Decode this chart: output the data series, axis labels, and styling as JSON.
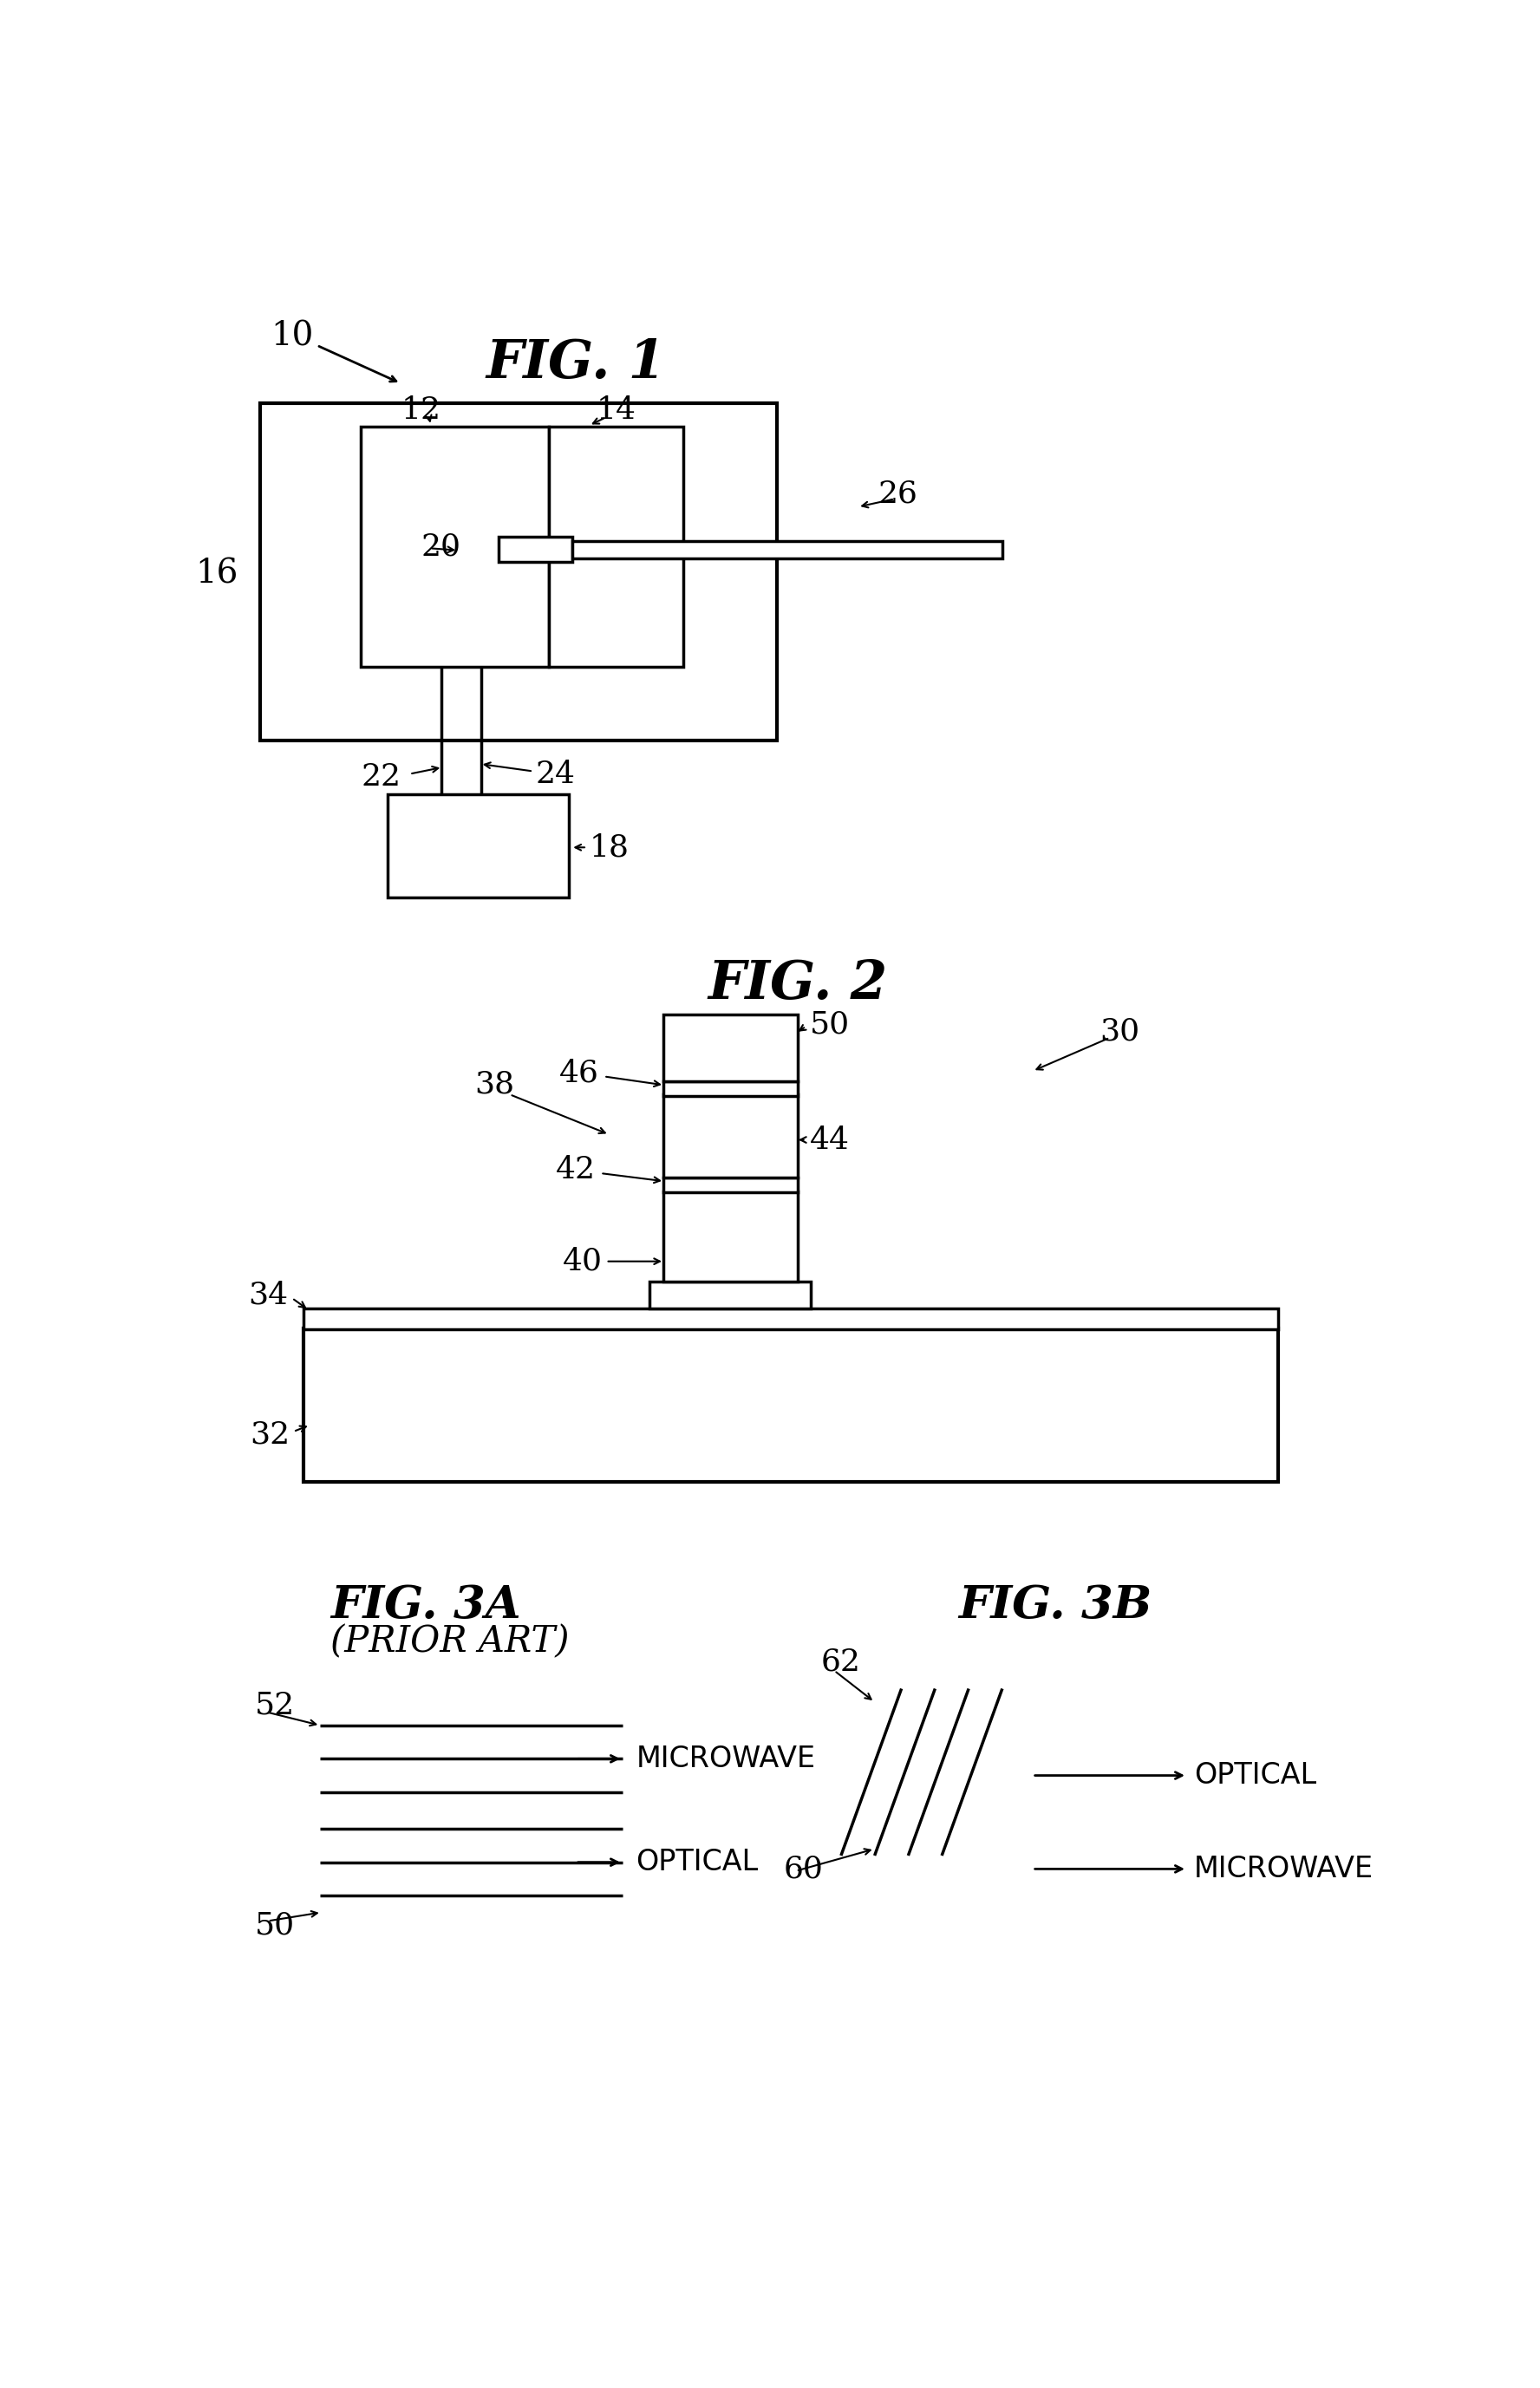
{
  "bg_color": "#ffffff",
  "line_color": "#000000",
  "fig_width": 17.76,
  "fig_height": 27.54,
  "fig1_title": "FIG. 1",
  "fig2_title": "FIG. 2",
  "fig3a_title": "FIG. 3A",
  "fig3a_subtitle": "(PRIOR ART)",
  "fig3b_title": "FIG. 3B",
  "labels": {
    "10": "10",
    "12": "12",
    "14": "14",
    "16": "16",
    "18": "18",
    "20": "20",
    "22": "22",
    "24": "24",
    "26": "26",
    "30": "30",
    "32": "32",
    "34": "34",
    "38": "38",
    "40": "40",
    "42": "42",
    "44": "44",
    "46": "46",
    "50": "50",
    "52": "52",
    "60": "60",
    "62": "62"
  },
  "text_microwave": "MICROWAVE",
  "text_optical": "OPTICAL"
}
